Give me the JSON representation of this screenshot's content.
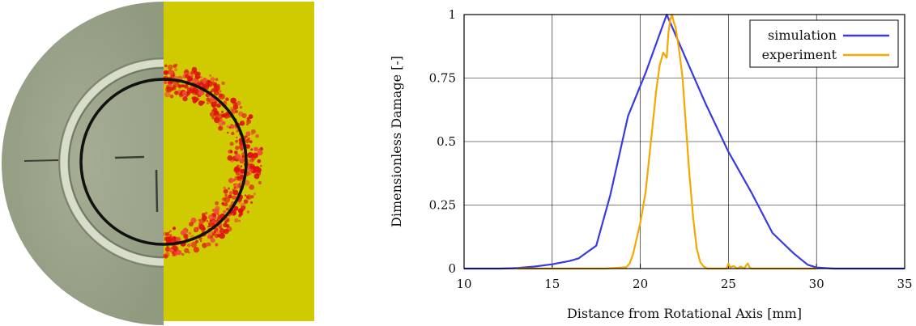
{
  "colors": {
    "specimen_base": "#9aa58b",
    "overlay": "#cfcb00",
    "damage": "#e01010",
    "ring": "#111111",
    "simulation": "#3a3ae0",
    "experiment": "#f5a800",
    "grid": "#000000"
  },
  "chart_data": {
    "type": "line",
    "title": "",
    "xlabel": "Distance from Rotational Axis [mm]",
    "ylabel": "Dimensionless Damage [-]",
    "xlim": [
      10,
      35
    ],
    "ylim": [
      0,
      1
    ],
    "x_ticks": [
      10,
      15,
      20,
      25,
      30,
      35
    ],
    "y_ticks": [
      0,
      0.25,
      0.5,
      0.75,
      1
    ],
    "y_tick_labels": [
      "0",
      "0.25",
      "0.5",
      "0.75",
      "1"
    ],
    "grid": true,
    "legend_position": "top-right",
    "series": [
      {
        "name": "simulation",
        "color": "#3a3ae0",
        "x": [
          10,
          11,
          12,
          13,
          14,
          15,
          16,
          16.5,
          17.5,
          18.3,
          19.3,
          20.3,
          21.5,
          22.5,
          23.7,
          25,
          26.3,
          27.5,
          28.7,
          29.5,
          30,
          31,
          32,
          33,
          34,
          35
        ],
        "y": [
          0,
          0,
          0,
          0.002,
          0.008,
          0.017,
          0.03,
          0.04,
          0.09,
          0.29,
          0.6,
          0.77,
          1.0,
          0.84,
          0.65,
          0.46,
          0.3,
          0.14,
          0.06,
          0.015,
          0.004,
          0,
          0,
          0,
          0,
          0
        ]
      },
      {
        "name": "experiment",
        "color": "#f5a800",
        "x": [
          13,
          16,
          18,
          19.2,
          19.4,
          19.6,
          19.8,
          20.0,
          20.3,
          20.6,
          20.9,
          21.1,
          21.3,
          21.5,
          21.6,
          21.7,
          21.8,
          21.9,
          22.0,
          22.2,
          22.4,
          22.6,
          22.8,
          23.0,
          23.2,
          23.4,
          23.6,
          23.8,
          24.5,
          24.9,
          25.0,
          25.1,
          25.3,
          25.5,
          25.7,
          25.9,
          26.0,
          26.1,
          26.2,
          26.3,
          27,
          30
        ],
        "y": [
          0,
          0,
          0,
          0.005,
          0.02,
          0.06,
          0.12,
          0.18,
          0.3,
          0.5,
          0.7,
          0.8,
          0.85,
          0.83,
          0.93,
          0.98,
          1.0,
          0.97,
          0.95,
          0.86,
          0.75,
          0.55,
          0.36,
          0.2,
          0.08,
          0.025,
          0.008,
          0,
          0,
          0,
          0.02,
          0.005,
          0.01,
          0.0,
          0.008,
          0.0,
          0.012,
          0.02,
          0.005,
          0.0,
          0,
          0
        ]
      }
    ]
  }
}
